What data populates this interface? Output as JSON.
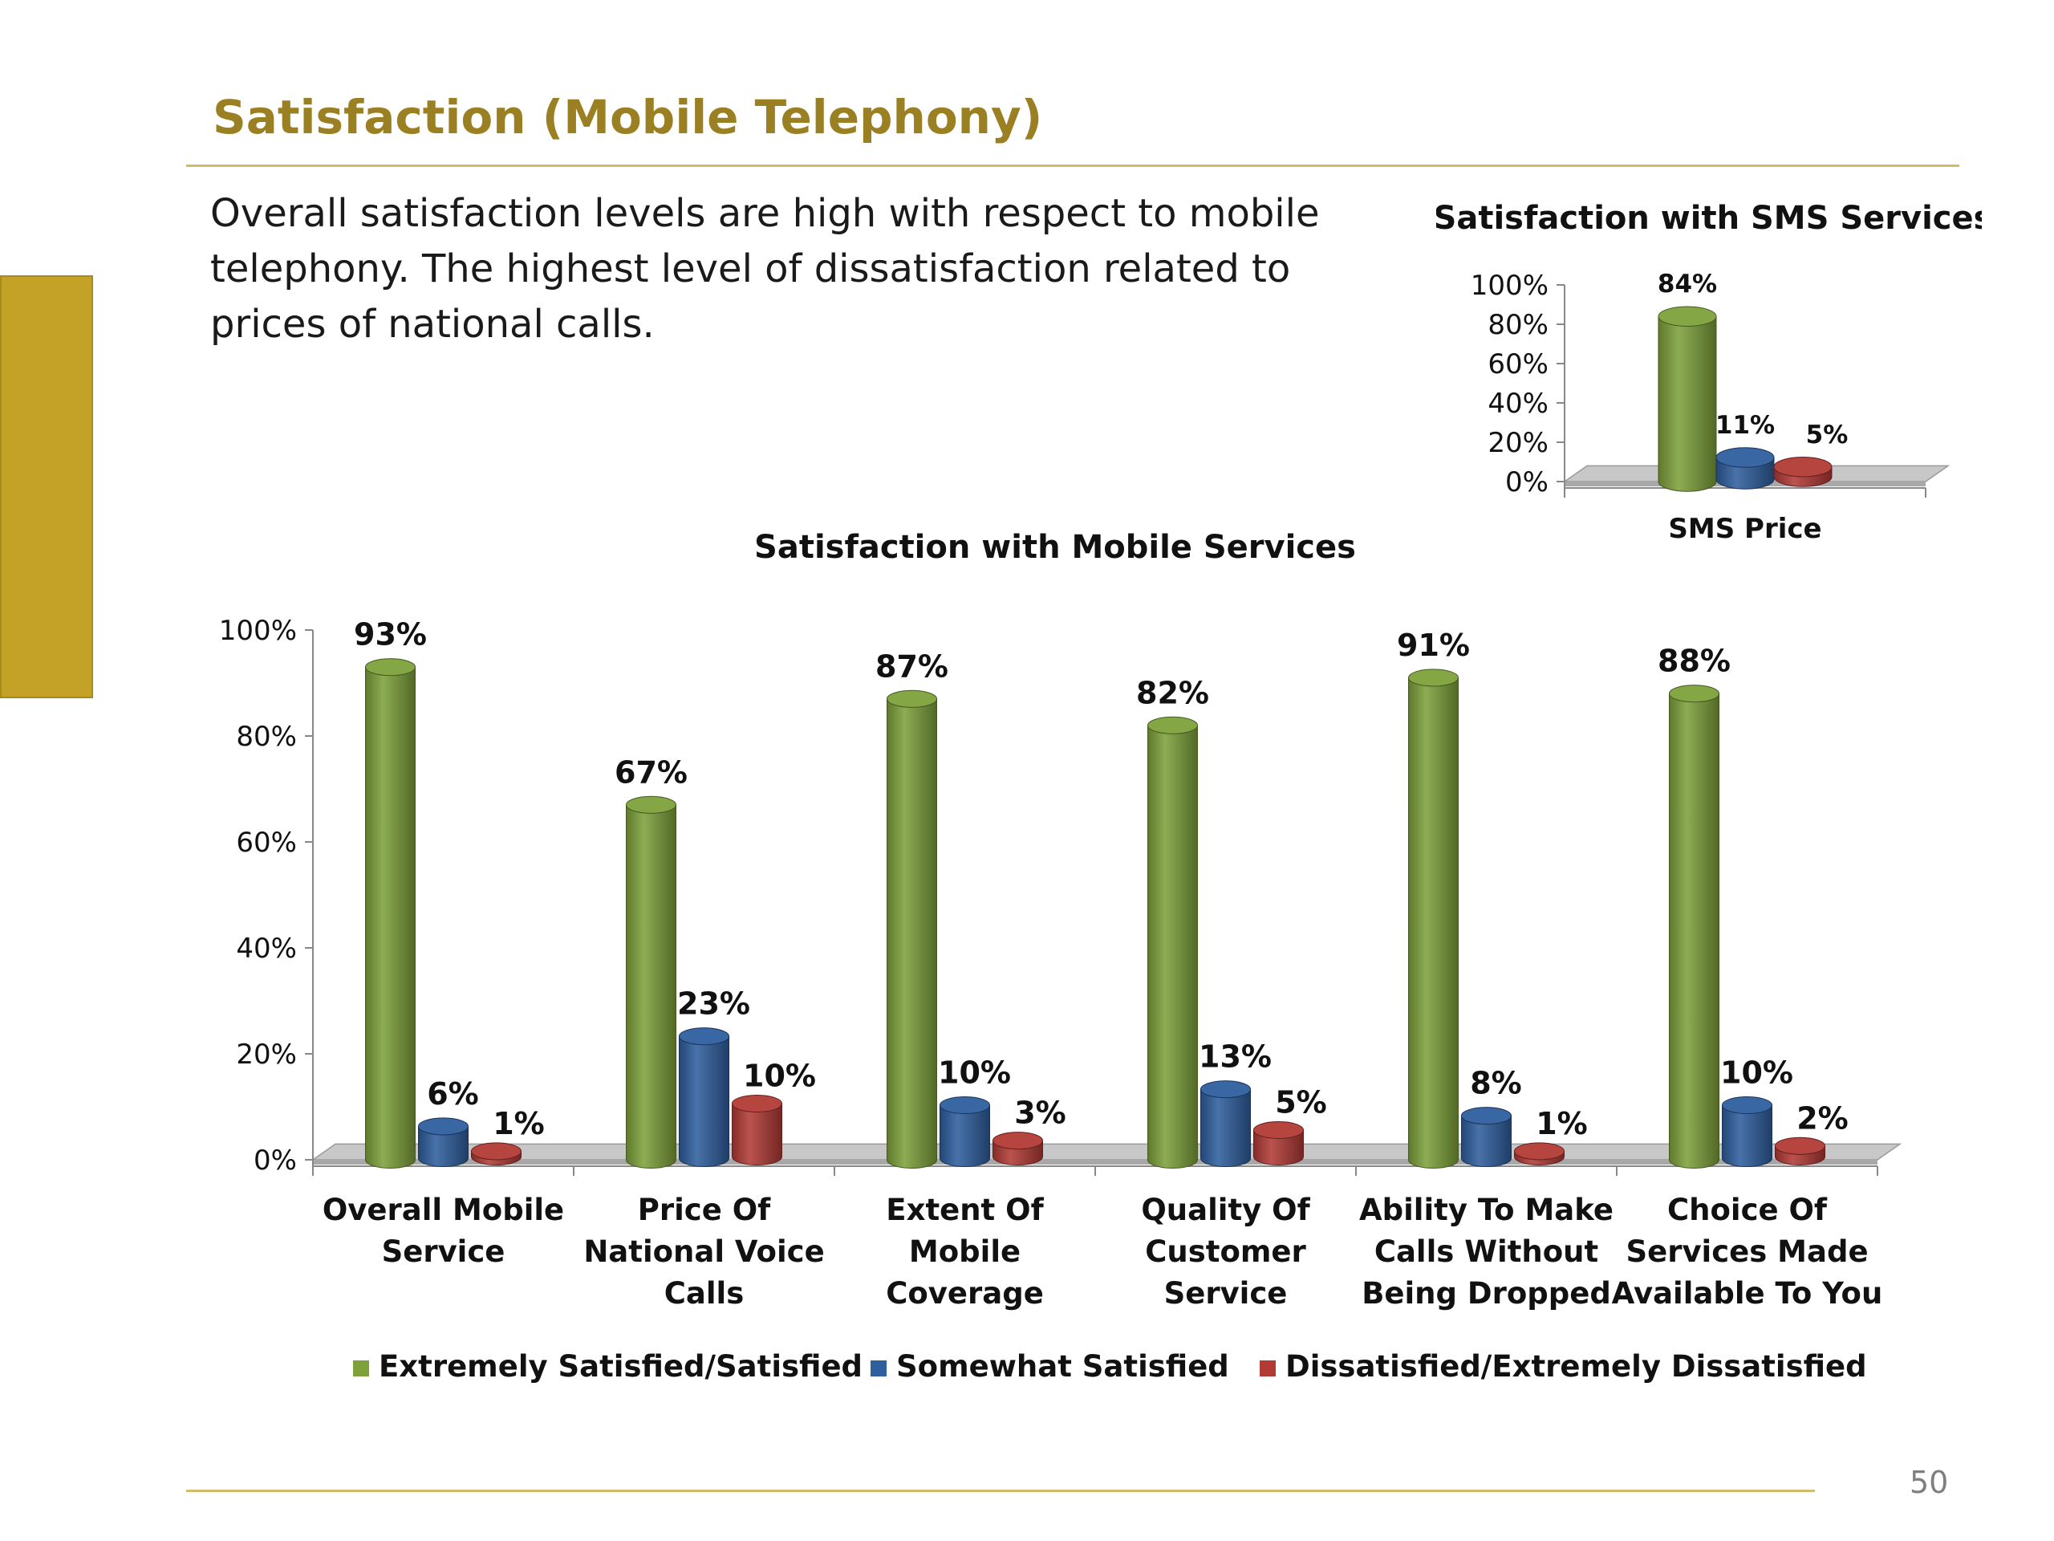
{
  "slide": {
    "title": "Satisfaction (Mobile Telephony)",
    "summary": "Overall satisfaction levels are high with respect to mobile telephony. The highest level of dissatisfaction related to prices of national calls.",
    "page_number": "50"
  },
  "colors": {
    "accent_gold": "#9a8022",
    "green": "#7ea13b",
    "blue": "#2f5f9e",
    "red": "#b23b36"
  },
  "chart_data": [
    {
      "type": "bar",
      "title": "Satisfaction with SMS Services",
      "categories": [
        "SMS Price"
      ],
      "series": [
        {
          "name": "Extremely Satisfied/Satisfied",
          "values": [
            84
          ],
          "labels": [
            "84%"
          ]
        },
        {
          "name": "Somewhat Satisfied",
          "values": [
            11
          ],
          "labels": [
            "11%"
          ]
        },
        {
          "name": "Dissatisfied/Extremely Dissatisfied",
          "values": [
            5
          ],
          "labels": [
            "5%"
          ]
        }
      ],
      "yticks": [
        "0%",
        "20%",
        "40%",
        "60%",
        "80%",
        "100%"
      ],
      "ylim": [
        0,
        100
      ],
      "legend": "none"
    },
    {
      "type": "bar",
      "title": "Satisfaction with Mobile Services",
      "categories": [
        [
          "Overall Mobile",
          "Service"
        ],
        [
          "Price Of",
          "National Voice",
          "Calls"
        ],
        [
          "Extent Of",
          "Mobile",
          "Coverage"
        ],
        [
          "Quality Of",
          "Customer",
          "Service"
        ],
        [
          "Ability To Make",
          "Calls Without",
          "Being Dropped"
        ],
        [
          "Choice Of",
          "Services Made",
          "Available To You"
        ]
      ],
      "series": [
        {
          "name": "Extremely Satisfied/Satisfied",
          "values": [
            93,
            67,
            87,
            82,
            91,
            88
          ],
          "labels": [
            "93%",
            "67%",
            "87%",
            "82%",
            "91%",
            "88%"
          ]
        },
        {
          "name": "Somewhat Satisfied",
          "values": [
            6,
            23,
            10,
            13,
            8,
            10
          ],
          "labels": [
            "6%",
            "23%",
            "10%",
            "13%",
            "8%",
            "10%"
          ]
        },
        {
          "name": "Dissatisfied/Extremely Dissatisfied",
          "values": [
            1,
            10,
            3,
            5,
            1,
            2
          ],
          "labels": [
            "1%",
            "10%",
            "3%",
            "5%",
            "1%",
            "2%"
          ]
        }
      ],
      "yticks": [
        "0%",
        "20%",
        "40%",
        "60%",
        "80%",
        "100%"
      ],
      "ylim": [
        0,
        100
      ],
      "legend": "bottom"
    }
  ]
}
